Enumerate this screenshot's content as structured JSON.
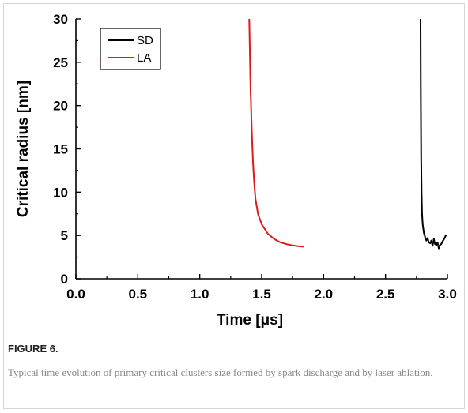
{
  "figure": {
    "label": "FIGURE 6.",
    "caption": "Typical time evolution of primary critical clusters size formed by spark discharge and by laser ablation."
  },
  "chart_data": {
    "type": "line",
    "title": "",
    "xlabel": "Time [μs]",
    "ylabel": "Critical radius [nm]",
    "xlim": [
      0.0,
      3.0
    ],
    "ylim": [
      0,
      30
    ],
    "x_ticks": [
      "0.0",
      "0.5",
      "1.0",
      "1.5",
      "2.0",
      "2.5",
      "3.0"
    ],
    "y_ticks": [
      "0",
      "5",
      "10",
      "15",
      "20",
      "25",
      "30"
    ],
    "grid": false,
    "legend_position": "top-left",
    "series": [
      {
        "name": "SD",
        "color": "#000000",
        "x": [
          2.783,
          2.785,
          2.788,
          2.791,
          2.795,
          2.8,
          2.81,
          2.82,
          2.83,
          2.84,
          2.85,
          2.86,
          2.87,
          2.88,
          2.89,
          2.9,
          2.91,
          2.92,
          2.93,
          2.94,
          2.95,
          2.96,
          2.97,
          2.98,
          2.99
        ],
        "y": [
          30.0,
          22.0,
          14.0,
          10.0,
          7.5,
          6.3,
          5.3,
          4.8,
          4.4,
          4.7,
          4.2,
          4.1,
          4.4,
          3.8,
          4.6,
          4.0,
          3.9,
          4.2,
          3.5,
          3.9,
          4.0,
          4.3,
          4.5,
          4.8,
          5.1
        ]
      },
      {
        "name": "LA",
        "color": "#e0191b",
        "x": [
          1.4,
          1.41,
          1.42,
          1.43,
          1.44,
          1.45,
          1.47,
          1.5,
          1.55,
          1.6,
          1.65,
          1.7,
          1.75,
          1.8,
          1.84
        ],
        "y": [
          30.0,
          22.0,
          17.0,
          13.5,
          11.0,
          9.2,
          7.5,
          6.3,
          5.2,
          4.6,
          4.2,
          4.0,
          3.85,
          3.75,
          3.7
        ]
      }
    ]
  }
}
